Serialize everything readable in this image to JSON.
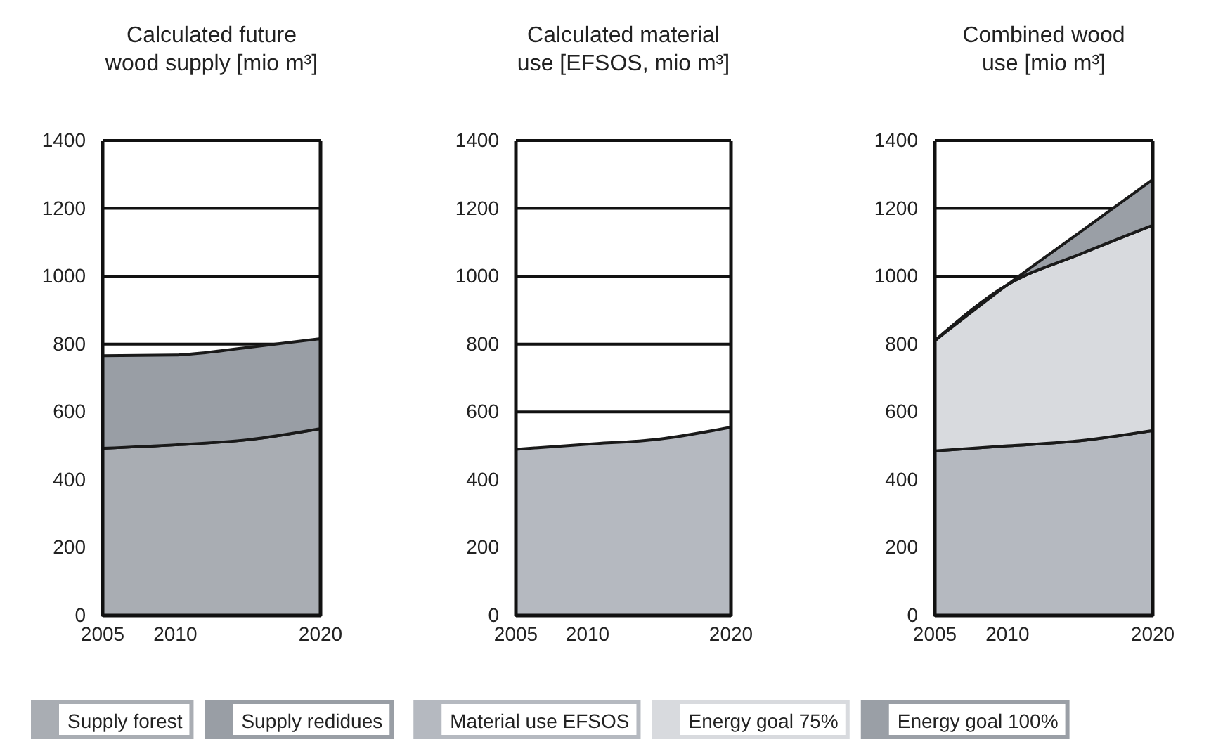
{
  "chart_data": [
    {
      "type": "area",
      "stacked": true,
      "title": "Calculated future wood supply [mio m³]",
      "x": [
        2005,
        2010,
        2015,
        2020
      ],
      "xlim": [
        2005,
        2020
      ],
      "xticks": [
        2005,
        2010,
        2020
      ],
      "ylim": [
        0,
        1400
      ],
      "yticks": [
        0,
        200,
        400,
        600,
        800,
        1000,
        1200,
        1400
      ],
      "grid": "y",
      "legend": "bottom",
      "series": [
        {
          "name": "Supply forest",
          "color": "#a9adb3",
          "values": [
            493,
            503,
            518,
            551
          ]
        },
        {
          "name": "Supply redidues",
          "color": "#999ea5",
          "values": [
            273,
            265,
            272,
            265
          ]
        }
      ]
    },
    {
      "type": "area",
      "stacked": true,
      "title": "Calculated material use [EFSOS, mio m³]",
      "x": [
        2005,
        2010,
        2015,
        2020
      ],
      "xlim": [
        2005,
        2020
      ],
      "xticks": [
        2005,
        2010,
        2020
      ],
      "ylim": [
        0,
        1400
      ],
      "yticks": [
        0,
        200,
        400,
        600,
        800,
        1000,
        1200,
        1400
      ],
      "grid": "y",
      "legend": "bottom",
      "series": [
        {
          "name": "Material use EFSOS",
          "color": "#b5b9c0",
          "values": [
            490,
            505,
            520,
            555
          ]
        }
      ]
    },
    {
      "type": "area",
      "stacked": true,
      "title": "Combined wood use [mio m³]",
      "x": [
        2005,
        2010,
        2015,
        2020
      ],
      "xlim": [
        2005,
        2020
      ],
      "xticks": [
        2005,
        2010,
        2020
      ],
      "ylim": [
        0,
        1400
      ],
      "yticks": [
        0,
        200,
        400,
        600,
        800,
        1000,
        1200,
        1400
      ],
      "grid": "y",
      "legend": "bottom",
      "series": [
        {
          "color": "#b5b9c0",
          "values": [
            485,
            500,
            515,
            545
          ]
        },
        {
          "name": "Energy goal 75%",
          "color": "#d8dade",
          "values": [
            325,
            475,
            550,
            605
          ]
        },
        {
          "name": "Energy goal 100%",
          "color": "#9a9fa6",
          "values": [
            0,
            0,
            65,
            135
          ]
        }
      ]
    }
  ]
}
